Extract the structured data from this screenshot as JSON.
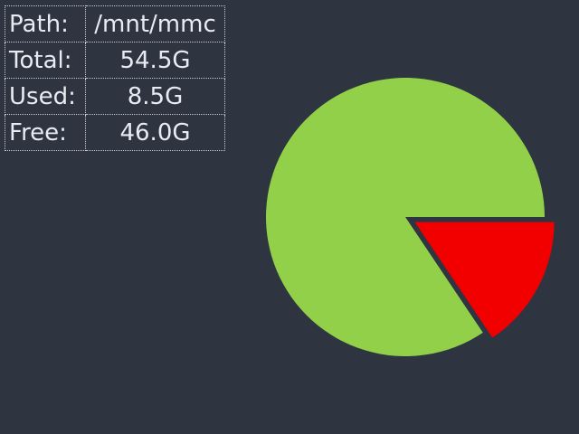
{
  "disk_info": {
    "rows": [
      {
        "label": "Path:",
        "value": "/mnt/mmc"
      },
      {
        "label": "Total:",
        "value": "54.5G"
      },
      {
        "label": "Used:",
        "value": "8.5G"
      },
      {
        "label": "Free:",
        "value": "46.0G"
      }
    ]
  },
  "usage_chart": {
    "slices": [
      {
        "value": 46.0,
        "color": "#92d04a",
        "exploded": false
      },
      {
        "value": 8.5,
        "color": "#f20000",
        "exploded": true
      }
    ]
  }
}
